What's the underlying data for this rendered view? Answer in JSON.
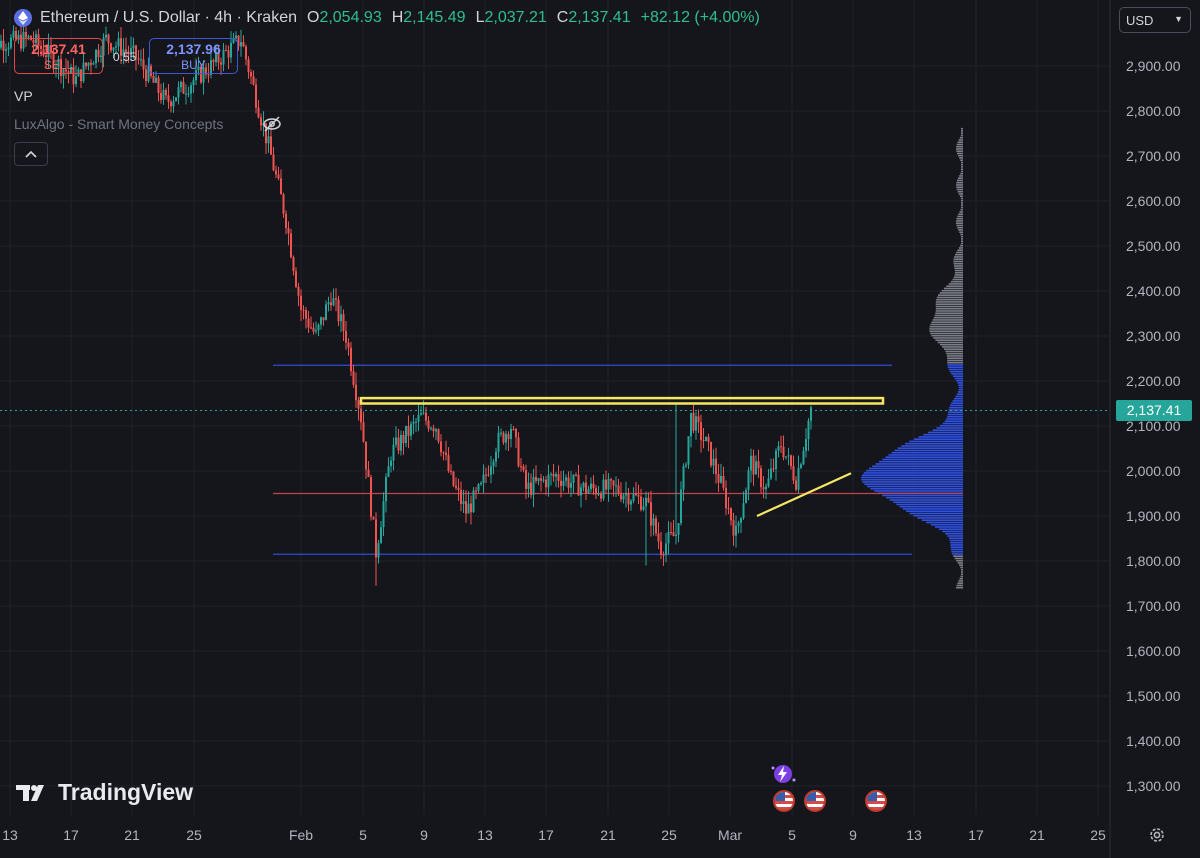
{
  "header": {
    "symbol_title": "Ethereum / U.S. Dollar · 4h · Kraken",
    "open_label": "O",
    "open_value": "2,054.93",
    "high_label": "H",
    "high_value": "2,145.49",
    "low_label": "L",
    "low_value": "2,037.21",
    "close_label": "C",
    "close_value": "2,137.41",
    "change": "+82.12 (+4.00%)",
    "symbol_icon": "ethereum-icon"
  },
  "trade": {
    "sell_price": "2,137.41",
    "sell_label": "SELL",
    "spread": "0.55",
    "buy_price": "2,137.96",
    "buy_label": "BUY"
  },
  "indicators": {
    "vp_label": "VP",
    "smc_label": "LuxAlgo - Smart Money Concepts",
    "hidden_icon": "eye-off-icon",
    "collapse_icon": "chevron-up-icon"
  },
  "currency": {
    "selected": "USD"
  },
  "last_price_tag": "2,137.41",
  "brand": {
    "name": "TradingView"
  },
  "colors": {
    "up": "#26a69a",
    "down": "#ef5350",
    "upper_lower_lines": "#2f4bd6",
    "mid_line": "#c0444e",
    "resistance": "#f5e663",
    "vp_inside": "#2f50e6",
    "vp_outside": "#7b7e88"
  },
  "y_axis": {
    "labels": [
      "2,900.00",
      "2,800.00",
      "2,700.00",
      "2,600.00",
      "2,500.00",
      "2,400.00",
      "2,300.00",
      "2,200.00",
      "2,100.00",
      "2,000.00",
      "1,900.00",
      "1,800.00",
      "1,700.00",
      "1,600.00",
      "1,500.00",
      "1,400.00",
      "1,300.00"
    ]
  },
  "x_axis": {
    "labels": [
      "13",
      "17",
      "21",
      "25",
      "Feb",
      "5",
      "9",
      "13",
      "17",
      "21",
      "25",
      "Mar",
      "5",
      "9",
      "13",
      "17",
      "21",
      "25"
    ]
  },
  "chart_data": {
    "type": "candlestick",
    "instrument": "ETH/USD",
    "interval": "4h",
    "ylim": [
      1250,
      3000
    ],
    "y_ticks": [
      2900,
      2800,
      2700,
      2600,
      2500,
      2400,
      2300,
      2200,
      2100,
      2000,
      1900,
      1800,
      1700,
      1600,
      1500,
      1400,
      1300
    ],
    "close_path": [
      [
        "2024-01-11",
        2950
      ],
      [
        "2024-01-14",
        2960
      ],
      [
        "2024-01-17",
        2870
      ],
      [
        "2024-01-19",
        2960
      ],
      [
        "2024-01-21",
        2920
      ],
      [
        "2024-01-23",
        2820
      ],
      [
        "2024-01-26",
        2900
      ],
      [
        "2024-01-28",
        2960
      ],
      [
        "2024-01-30",
        2700
      ],
      [
        "2024-01-31",
        2560
      ],
      [
        "2024-02-01",
        2360
      ],
      [
        "2024-02-02",
        2300
      ],
      [
        "2024-02-03",
        2390
      ],
      [
        "2024-02-04",
        2300
      ],
      [
        "2024-02-05",
        2120
      ],
      [
        "2024-02-06",
        1820
      ],
      [
        "2024-02-07",
        2040
      ],
      [
        "2024-02-09",
        2120
      ],
      [
        "2024-02-10",
        2100
      ],
      [
        "2024-02-11",
        1980
      ],
      [
        "2024-02-12",
        1910
      ],
      [
        "2024-02-13",
        1960
      ],
      [
        "2024-02-14",
        2060
      ],
      [
        "2024-02-15",
        2100
      ],
      [
        "2024-02-16",
        1960
      ],
      [
        "2024-02-18",
        1990
      ],
      [
        "2024-02-20",
        1960
      ],
      [
        "2024-02-22",
        1960
      ],
      [
        "2024-02-24",
        1930
      ],
      [
        "2024-02-25",
        1830
      ],
      [
        "2024-02-26",
        1860
      ],
      [
        "2024-02-27",
        2120
      ],
      [
        "2024-02-28",
        2060
      ],
      [
        "2024-02-29",
        1970
      ],
      [
        "2024-03-01",
        1860
      ],
      [
        "2024-03-02",
        2020
      ],
      [
        "2024-03-03",
        1960
      ],
      [
        "2024-03-04",
        2060
      ],
      [
        "2024-03-05",
        1980
      ],
      [
        "2024-03-06",
        2137.41
      ]
    ],
    "lows_marked": [
      [
        "2024-02-06",
        1745
      ],
      [
        "2024-02-24",
        1790
      ],
      [
        "2024-03-01",
        1830
      ]
    ],
    "high_marked": [
      [
        "2024-02-26",
        2150
      ],
      [
        "2024-03-06",
        2145.49
      ]
    ],
    "volume_profile": {
      "value_area_high": 2235,
      "point_of_control": 1950,
      "value_area_low": 1815,
      "range": [
        1740,
        2760
      ]
    },
    "drawings": {
      "resistance_box": [
        2150,
        2162
      ],
      "trendline": [
        [
          "2024-03-02",
          1900
        ],
        [
          "2024-03-08",
          1995
        ]
      ]
    },
    "last_price": 2137.41
  }
}
